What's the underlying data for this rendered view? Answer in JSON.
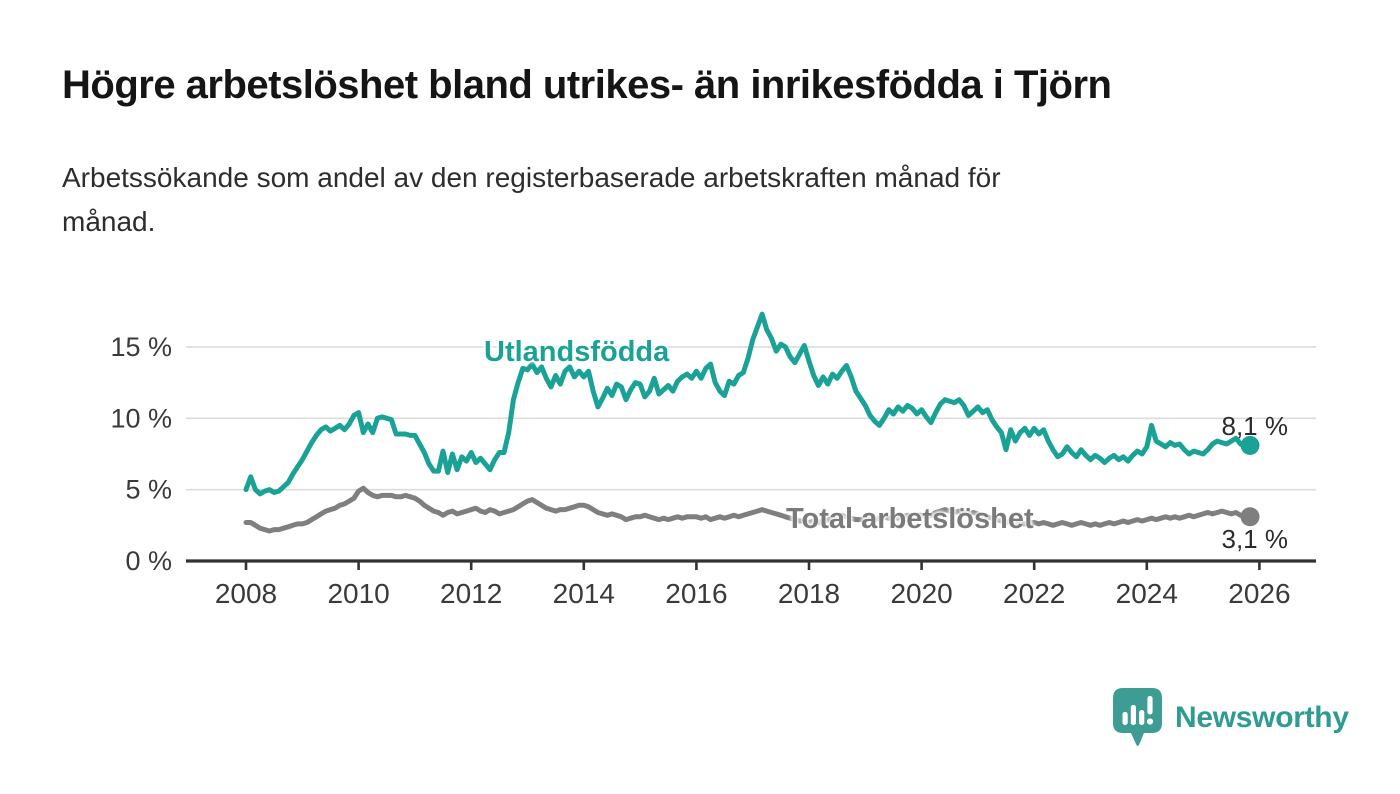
{
  "header": {
    "title": "Högre arbetslöshet bland utrikes- än inrikesfödda i Tjörn",
    "subtitle_lines": [
      "Arbetssökande som andel av den registerbaserade arbetskraften månad för",
      "månad."
    ]
  },
  "branding": {
    "logo_text": "Newsworthy",
    "logo_icon": "newsworthy-speech-bubble-bar-chart-icon",
    "logo_color": "#3d9d94",
    "text_color": "#2f9b92"
  },
  "chart_data": {
    "type": "line",
    "title": "Högre arbetslöshet bland utrikes- än inrikesfödda i Tjörn",
    "x_unit": "month",
    "x_start_year": 2008,
    "x_end_label": "2026",
    "grid": true,
    "legend": "inline-labels",
    "ylim": [
      0,
      18
    ],
    "x_ticks": [
      {
        "value": 2008,
        "label": "2008"
      },
      {
        "value": 2010,
        "label": "2010"
      },
      {
        "value": 2012,
        "label": "2012"
      },
      {
        "value": 2014,
        "label": "2014"
      },
      {
        "value": 2016,
        "label": "2016"
      },
      {
        "value": 2018,
        "label": "2018"
      },
      {
        "value": 2020,
        "label": "2020"
      },
      {
        "value": 2022,
        "label": "2022"
      },
      {
        "value": 2024,
        "label": "2024"
      },
      {
        "value": 2026,
        "label": "2026"
      }
    ],
    "y_ticks": [
      {
        "value": 0,
        "label": "0 %"
      },
      {
        "value": 5,
        "label": "5 %"
      },
      {
        "value": 10,
        "label": "10 %"
      },
      {
        "value": 15,
        "label": "15 %"
      }
    ],
    "colors": {
      "grid": "#dcdcdc",
      "axis": "#333333",
      "tick_text": "#3a3a3a"
    },
    "series": [
      {
        "name": "Utlandsfödda",
        "color": "#1aa297",
        "end_label": "8,1 %",
        "end_value": 8.1,
        "start": "2008-01",
        "interval_months": 1,
        "values": [
          5.0,
          5.9,
          5.0,
          4.7,
          4.9,
          5.0,
          4.8,
          4.9,
          5.2,
          5.5,
          6.1,
          6.6,
          7.1,
          7.7,
          8.3,
          8.8,
          9.2,
          9.4,
          9.1,
          9.3,
          9.5,
          9.2,
          9.6,
          10.2,
          10.4,
          9.0,
          9.6,
          9.0,
          10.0,
          10.1,
          10.0,
          9.9,
          8.9,
          8.9,
          8.9,
          8.8,
          8.8,
          8.2,
          7.6,
          6.8,
          6.3,
          6.3,
          7.7,
          6.2,
          7.5,
          6.4,
          7.3,
          7.0,
          7.6,
          6.9,
          7.2,
          6.8,
          6.4,
          7.1,
          7.6,
          7.6,
          9.0,
          11.3,
          12.5,
          13.5,
          13.4,
          13.8,
          13.2,
          13.6,
          12.8,
          12.2,
          13.0,
          12.4,
          13.3,
          13.6,
          12.9,
          13.3,
          12.9,
          13.3,
          11.9,
          10.8,
          11.4,
          12.1,
          11.6,
          12.4,
          12.2,
          11.3,
          12.0,
          12.5,
          12.4,
          11.5,
          11.9,
          12.8,
          11.7,
          12.0,
          12.3,
          11.9,
          12.6,
          12.9,
          13.1,
          12.8,
          13.3,
          12.8,
          13.5,
          13.8,
          12.5,
          11.9,
          11.6,
          12.6,
          12.4,
          13.0,
          13.2,
          14.2,
          15.5,
          16.4,
          17.3,
          16.2,
          15.6,
          14.7,
          15.2,
          15.0,
          14.3,
          13.9,
          14.5,
          15.1,
          14.0,
          13.0,
          12.3,
          12.9,
          12.4,
          13.1,
          12.8,
          13.3,
          13.7,
          12.9,
          11.9,
          11.4,
          10.9,
          10.2,
          9.8,
          9.5,
          10.0,
          10.6,
          10.3,
          10.8,
          10.5,
          10.9,
          10.7,
          10.3,
          10.6,
          10.1,
          9.7,
          10.4,
          11.0,
          11.3,
          11.2,
          11.1,
          11.3,
          10.9,
          10.2,
          10.5,
          10.8,
          10.4,
          10.6,
          9.9,
          9.4,
          9.0,
          7.8,
          9.2,
          8.4,
          9.0,
          9.3,
          8.8,
          9.3,
          8.9,
          9.2,
          8.4,
          7.8,
          7.3,
          7.5,
          8.0,
          7.6,
          7.3,
          7.8,
          7.4,
          7.1,
          7.4,
          7.2,
          6.9,
          7.2,
          7.4,
          7.1,
          7.3,
          7.0,
          7.4,
          7.7,
          7.5,
          8.0,
          9.5,
          8.4,
          8.2,
          8.0,
          8.3,
          8.1,
          8.2,
          7.8,
          7.5,
          7.7,
          7.6,
          7.5,
          7.8,
          8.2,
          8.4,
          8.3,
          8.2,
          8.4,
          8.6,
          8.2,
          8.0,
          8.1
        ]
      },
      {
        "name": "Total arbetslöshet",
        "color": "#7f7f7f",
        "end_label": "3,1 %",
        "end_value": 3.1,
        "start": "2008-01",
        "interval_months": 1,
        "values": [
          2.7,
          2.7,
          2.5,
          2.3,
          2.2,
          2.1,
          2.2,
          2.2,
          2.3,
          2.4,
          2.5,
          2.6,
          2.6,
          2.7,
          2.9,
          3.1,
          3.3,
          3.5,
          3.6,
          3.7,
          3.9,
          4.0,
          4.2,
          4.4,
          4.9,
          5.1,
          4.8,
          4.6,
          4.5,
          4.6,
          4.6,
          4.6,
          4.5,
          4.5,
          4.6,
          4.5,
          4.4,
          4.2,
          3.9,
          3.7,
          3.5,
          3.4,
          3.2,
          3.4,
          3.5,
          3.3,
          3.4,
          3.5,
          3.6,
          3.7,
          3.5,
          3.4,
          3.6,
          3.5,
          3.3,
          3.4,
          3.5,
          3.6,
          3.8,
          4.0,
          4.2,
          4.3,
          4.1,
          3.9,
          3.7,
          3.6,
          3.5,
          3.6,
          3.6,
          3.7,
          3.8,
          3.9,
          3.9,
          3.8,
          3.6,
          3.4,
          3.3,
          3.2,
          3.3,
          3.2,
          3.1,
          2.9,
          3.0,
          3.1,
          3.1,
          3.2,
          3.1,
          3.0,
          2.9,
          3.0,
          2.9,
          3.0,
          3.1,
          3.0,
          3.1,
          3.1,
          3.1,
          3.0,
          3.1,
          2.9,
          3.0,
          3.1,
          3.0,
          3.1,
          3.2,
          3.1,
          3.2,
          3.3,
          3.4,
          3.5,
          3.6,
          3.5,
          3.4,
          3.3,
          3.2,
          3.1,
          3.0,
          2.9,
          2.8,
          2.8,
          2.7,
          2.8,
          2.7,
          2.8,
          2.9,
          3.0,
          3.1,
          3.2,
          3.1,
          3.0,
          2.9,
          2.9,
          2.9,
          3.0,
          2.9,
          3.0,
          3.1,
          3.0,
          3.1,
          3.0,
          3.1,
          3.2,
          3.1,
          3.2,
          3.2,
          3.1,
          3.2,
          3.4,
          3.5,
          3.6,
          3.5,
          3.4,
          3.5,
          3.4,
          3.3,
          3.4,
          3.3,
          3.2,
          3.1,
          3.0,
          2.9,
          2.8,
          2.7,
          2.8,
          2.7,
          2.6,
          2.6,
          2.7,
          2.7,
          2.6,
          2.7,
          2.6,
          2.5,
          2.6,
          2.7,
          2.6,
          2.5,
          2.6,
          2.7,
          2.6,
          2.5,
          2.6,
          2.5,
          2.6,
          2.7,
          2.6,
          2.7,
          2.8,
          2.7,
          2.8,
          2.9,
          2.8,
          2.9,
          3.0,
          2.9,
          3.0,
          3.1,
          3.0,
          3.1,
          3.0,
          3.1,
          3.2,
          3.1,
          3.2,
          3.3,
          3.4,
          3.3,
          3.4,
          3.5,
          3.4,
          3.3,
          3.4,
          3.2,
          3.2,
          3.1
        ]
      }
    ]
  }
}
